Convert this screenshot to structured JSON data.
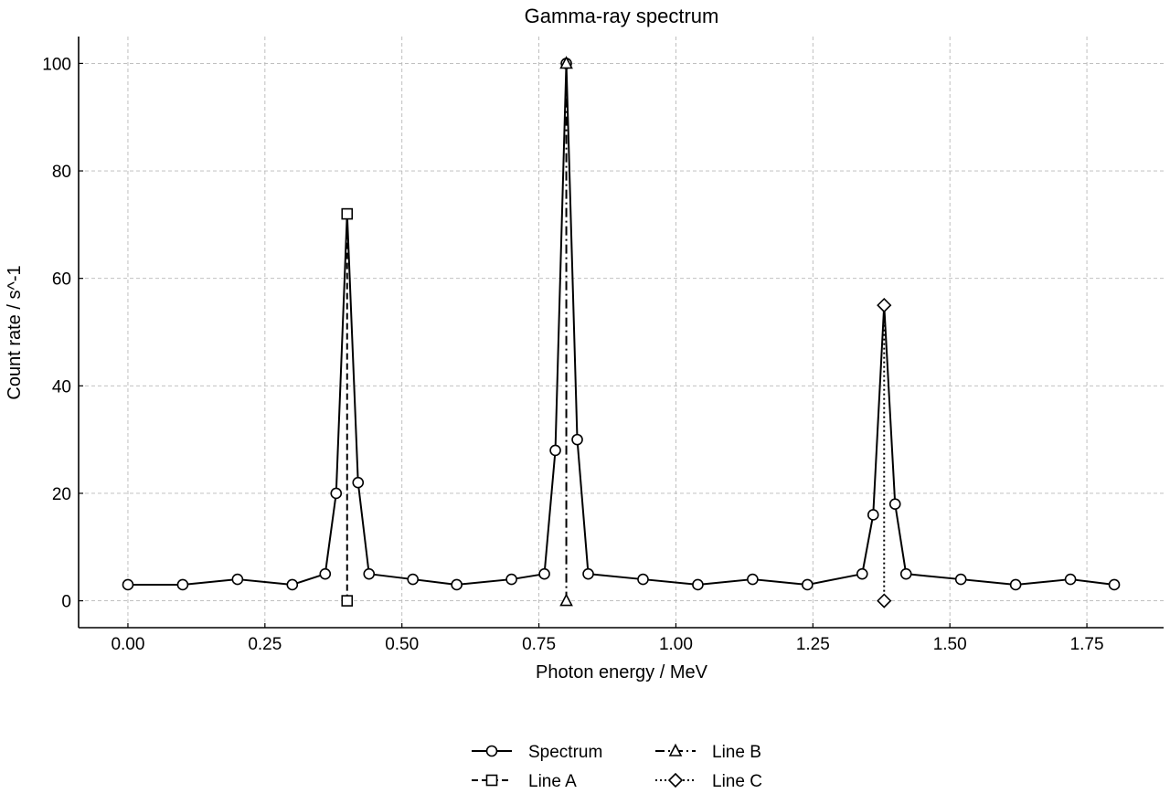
{
  "chart_data": {
    "type": "line",
    "title": "Gamma-ray spectrum",
    "xlabel": "Photon energy / MeV",
    "ylabel": "Count rate / s^-1",
    "xlim": [
      -0.09,
      1.89
    ],
    "ylim": [
      -5,
      105
    ],
    "xticks": [
      0.0,
      0.25,
      0.5,
      0.75,
      1.0,
      1.25,
      1.5,
      1.75
    ],
    "xtick_labels": [
      "0.00",
      "0.25",
      "0.50",
      "0.75",
      "1.00",
      "1.25",
      "1.50",
      "1.75"
    ],
    "yticks": [
      0,
      20,
      40,
      60,
      80,
      100
    ],
    "ytick_labels": [
      "0",
      "20",
      "40",
      "60",
      "80",
      "100"
    ],
    "grid": true,
    "legend_position": "bottom-center",
    "series": [
      {
        "name": "Spectrum",
        "marker": "circle",
        "linestyle": "solid",
        "x": [
          0.0,
          0.1,
          0.2,
          0.3,
          0.36,
          0.38,
          0.4,
          0.42,
          0.44,
          0.52,
          0.6,
          0.7,
          0.76,
          0.78,
          0.8,
          0.82,
          0.84,
          0.94,
          1.04,
          1.14,
          1.24,
          1.34,
          1.36,
          1.38,
          1.4,
          1.42,
          1.52,
          1.62,
          1.72,
          1.8
        ],
        "y": [
          3,
          3,
          4,
          3,
          5,
          20,
          72,
          22,
          5,
          4,
          3,
          4,
          5,
          28,
          100,
          30,
          5,
          4,
          3,
          4,
          3,
          5,
          16,
          55,
          18,
          5,
          4,
          3,
          4,
          3
        ],
        "marker_mask": [
          1,
          1,
          1,
          1,
          1,
          1,
          0,
          1,
          1,
          1,
          1,
          1,
          1,
          1,
          1,
          1,
          1,
          1,
          1,
          1,
          1,
          1,
          1,
          0,
          1,
          1,
          1,
          1,
          1,
          1
        ]
      },
      {
        "name": "Line A",
        "marker": "square",
        "linestyle": "dashed",
        "x": [
          0.4,
          0.4
        ],
        "y": [
          0,
          72
        ]
      },
      {
        "name": "Line B",
        "marker": "triangle",
        "linestyle": "dashdot",
        "x": [
          0.8,
          0.8
        ],
        "y": [
          0,
          100
        ]
      },
      {
        "name": "Line C",
        "marker": "diamond",
        "linestyle": "dotted",
        "x": [
          1.38,
          1.38
        ],
        "y": [
          0,
          55
        ]
      }
    ]
  }
}
